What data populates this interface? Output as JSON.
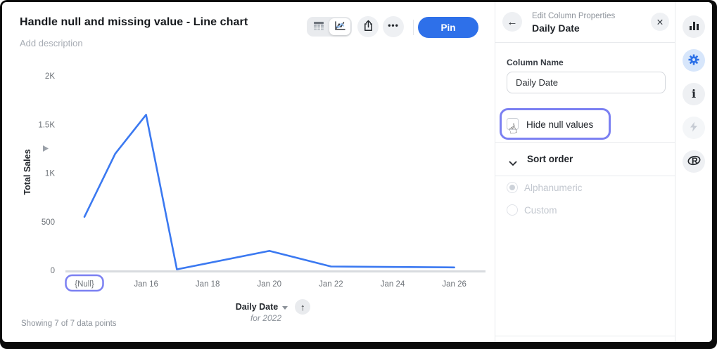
{
  "main": {
    "title": "Handle null and missing value - Line chart",
    "description_placeholder": "Add description",
    "toolbar": {
      "pin_label": "Pin",
      "icons": [
        "table-view",
        "line-chart-view",
        "share",
        "more-options"
      ]
    },
    "footer": "Showing 7 of 7 data points"
  },
  "chart_data": {
    "type": "line",
    "title": "Handle null and missing value - Line chart",
    "xlabel": "Daily Date",
    "x_sublabel": "for 2022",
    "ylabel": "Total Sales",
    "ylim": [
      0,
      2000
    ],
    "grid": false,
    "legend": false,
    "y_ticks": [
      {
        "label": "0",
        "value": 0
      },
      {
        "label": "500",
        "value": 500
      },
      {
        "label": "1K",
        "value": 1000
      },
      {
        "label": "1.5K",
        "value": 1500
      },
      {
        "label": "2K",
        "value": 2000
      }
    ],
    "x_ticks": [
      {
        "label": "{Null}",
        "day": 0,
        "highlighted": true
      },
      {
        "label": "Jan 16",
        "day": 2
      },
      {
        "label": "Jan 18",
        "day": 4
      },
      {
        "label": "Jan 20",
        "day": 6
      },
      {
        "label": "Jan 22",
        "day": 8
      },
      {
        "label": "Jan 24",
        "day": 10
      },
      {
        "label": "Jan 26",
        "day": 12
      }
    ],
    "series": [
      {
        "name": "Total Sales",
        "color": "#3b79f1",
        "points": [
          {
            "x": "{Null}",
            "day": 0,
            "value": 550
          },
          {
            "x": "Jan 15",
            "day": 1,
            "value": 1200
          },
          {
            "x": "Jan 16",
            "day": 2,
            "value": 1600
          },
          {
            "x": "Jan 17",
            "day": 3,
            "value": 10
          },
          {
            "x": "Jan 20",
            "day": 6,
            "value": 200
          },
          {
            "x": "Jan 22",
            "day": 8,
            "value": 40
          },
          {
            "x": "Jan 26",
            "day": 12,
            "value": 30
          }
        ]
      }
    ]
  },
  "panel": {
    "eyebrow": "Edit Column Properties",
    "title": "Daily Date",
    "column_name": {
      "label": "Column Name",
      "value": "Daily Date"
    },
    "hide_null": {
      "label": "Hide null values",
      "checked": false
    },
    "sort_order": {
      "label": "Sort order",
      "expanded": true,
      "options": [
        {
          "label": "Alphanumeric",
          "selected": true,
          "disabled": true
        },
        {
          "label": "Custom",
          "selected": false,
          "disabled": true
        }
      ]
    }
  },
  "rail": {
    "items": [
      "bar-chart",
      "settings-gear",
      "info",
      "lightning",
      "r-logo"
    ],
    "active": "settings-gear"
  },
  "icons": {
    "back": "←",
    "close": "✕",
    "sort_ascending": "↑",
    "ellipsis": "•••",
    "hand_cursor": "☝"
  },
  "colors": {
    "accent_blue": "#2e70e9",
    "line_blue": "#3b79f1",
    "highlight_purple": "#7b80f2",
    "axis_gray": "#d8dbdf",
    "tick_text": "#6d7278"
  }
}
